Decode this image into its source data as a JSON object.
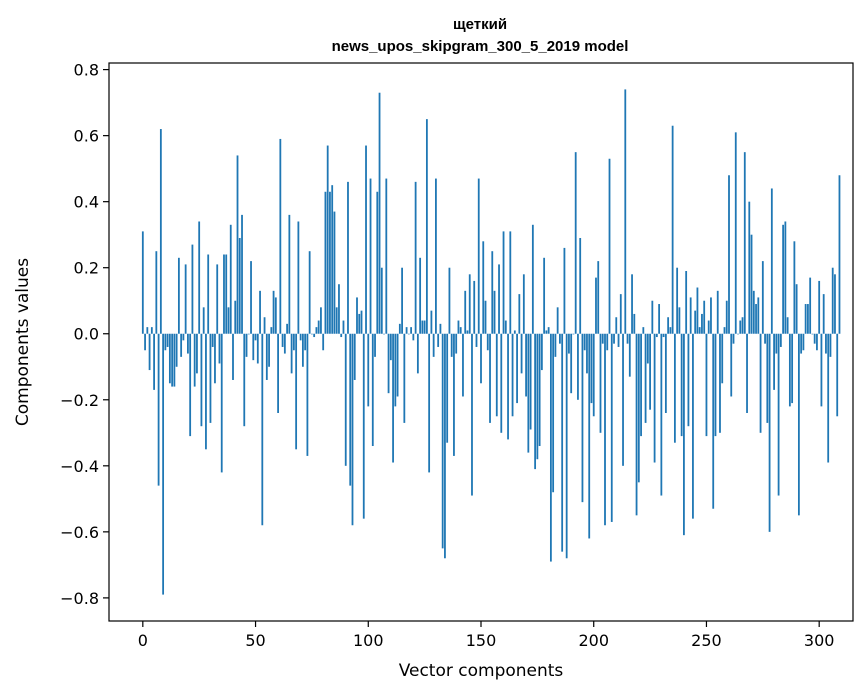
{
  "chart_data": {
    "type": "bar",
    "title": "щеткий",
    "subtitle": "news_upos_skipgram_300_5_2019 model",
    "xlabel": "Vector components",
    "ylabel": "Components values",
    "xlim": [
      -15,
      315
    ],
    "ylim": [
      -0.87,
      0.82
    ],
    "xticks": [
      0,
      50,
      100,
      150,
      200,
      250,
      300
    ],
    "xtick_labels": [
      "0",
      "50",
      "100",
      "150",
      "200",
      "250",
      "300"
    ],
    "yticks": [
      -0.8,
      -0.6,
      -0.4,
      -0.2,
      0.0,
      0.2,
      0.4,
      0.6,
      0.8
    ],
    "ytick_labels": [
      "−0.8",
      "−0.6",
      "−0.4",
      "−0.2",
      "0.0",
      "0.2",
      "0.4",
      "0.6",
      "0.8"
    ],
    "bar_color": "#1f77b4",
    "values": [
      0.31,
      -0.05,
      0.02,
      -0.11,
      0.02,
      -0.17,
      0.25,
      -0.46,
      0.62,
      -0.79,
      -0.05,
      -0.04,
      -0.15,
      -0.16,
      -0.16,
      -0.1,
      0.23,
      -0.07,
      -0.02,
      0.21,
      -0.06,
      -0.31,
      0.27,
      -0.16,
      -0.12,
      0.34,
      -0.28,
      0.08,
      -0.35,
      0.24,
      -0.27,
      -0.04,
      -0.15,
      0.21,
      -0.09,
      -0.42,
      0.24,
      0.24,
      0.08,
      0.33,
      -0.14,
      0.1,
      0.54,
      0.29,
      0.36,
      -0.28,
      -0.07,
      0.0,
      0.22,
      -0.08,
      -0.02,
      -0.09,
      0.13,
      -0.58,
      0.05,
      -0.14,
      -0.1,
      0.02,
      0.13,
      0.11,
      -0.24,
      0.59,
      -0.04,
      -0.06,
      0.03,
      0.36,
      -0.12,
      -0.05,
      -0.35,
      0.34,
      -0.02,
      -0.1,
      -0.05,
      -0.37,
      0.25,
      0.0,
      -0.01,
      0.02,
      0.04,
      0.08,
      -0.05,
      0.43,
      0.57,
      0.43,
      0.45,
      0.37,
      0.08,
      0.15,
      -0.01,
      0.04,
      -0.4,
      0.46,
      -0.46,
      -0.58,
      -0.14,
      0.11,
      0.06,
      0.07,
      -0.56,
      0.57,
      -0.22,
      0.47,
      -0.34,
      -0.07,
      0.43,
      0.73,
      0.2,
      0.0,
      0.47,
      -0.18,
      -0.08,
      -0.39,
      -0.22,
      -0.19,
      0.03,
      0.2,
      -0.27,
      0.02,
      0.0,
      0.02,
      -0.02,
      0.46,
      -0.12,
      0.23,
      0.04,
      0.04,
      0.65,
      -0.42,
      0.07,
      -0.07,
      0.47,
      -0.04,
      0.03,
      -0.65,
      -0.68,
      -0.33,
      0.2,
      -0.07,
      -0.37,
      -0.06,
      0.04,
      0.02,
      -0.19,
      0.13,
      0.01,
      0.18,
      -0.49,
      0.16,
      -0.04,
      0.47,
      -0.15,
      0.28,
      0.1,
      -0.05,
      -0.27,
      0.25,
      0.13,
      -0.25,
      0.21,
      -0.3,
      0.31,
      0.04,
      -0.32,
      0.31,
      -0.25,
      0.01,
      -0.21,
      0.12,
      -0.12,
      0.18,
      -0.19,
      -0.36,
      -0.29,
      0.33,
      -0.41,
      -0.38,
      -0.34,
      -0.11,
      0.23,
      0.01,
      0.02,
      -0.69,
      -0.48,
      -0.07,
      0.08,
      -0.03,
      -0.66,
      0.26,
      -0.68,
      -0.06,
      -0.18,
      0.0,
      0.55,
      -0.2,
      0.29,
      -0.51,
      -0.05,
      -0.12,
      -0.62,
      -0.21,
      -0.25,
      0.17,
      0.22,
      -0.3,
      -0.03,
      -0.58,
      -0.05,
      0.53,
      -0.57,
      -0.03,
      0.05,
      -0.04,
      0.12,
      -0.4,
      0.74,
      -0.03,
      -0.13,
      0.18,
      0.06,
      -0.55,
      -0.45,
      -0.31,
      0.02,
      -0.27,
      -0.09,
      -0.23,
      0.1,
      -0.39,
      -0.01,
      0.09,
      -0.49,
      -0.01,
      -0.24,
      0.05,
      0.02,
      0.63,
      -0.33,
      0.2,
      0.08,
      -0.31,
      -0.61,
      0.19,
      -0.28,
      0.11,
      -0.56,
      0.07,
      0.14,
      0.02,
      0.06,
      0.1,
      -0.31,
      0.04,
      0.11,
      -0.53,
      -0.31,
      0.13,
      -0.3,
      -0.15,
      0.02,
      0.1,
      0.48,
      -0.19,
      -0.03,
      0.61,
      0.0,
      0.04,
      0.05,
      0.55,
      -0.24,
      0.4,
      0.3,
      0.13,
      0.09,
      0.11,
      -0.3,
      0.22,
      -0.03,
      -0.27,
      -0.6,
      0.44,
      -0.17,
      -0.06,
      -0.49,
      -0.04,
      0.33,
      0.34,
      0.05,
      -0.22,
      -0.21,
      0.28,
      0.15,
      -0.55,
      -0.06,
      -0.05,
      0.09,
      0.09,
      0.17,
      0.0,
      -0.03,
      -0.05,
      0.16,
      -0.22,
      0.12,
      -0.06,
      -0.39,
      -0.07,
      0.2,
      0.18,
      -0.25,
      0.48
    ]
  }
}
